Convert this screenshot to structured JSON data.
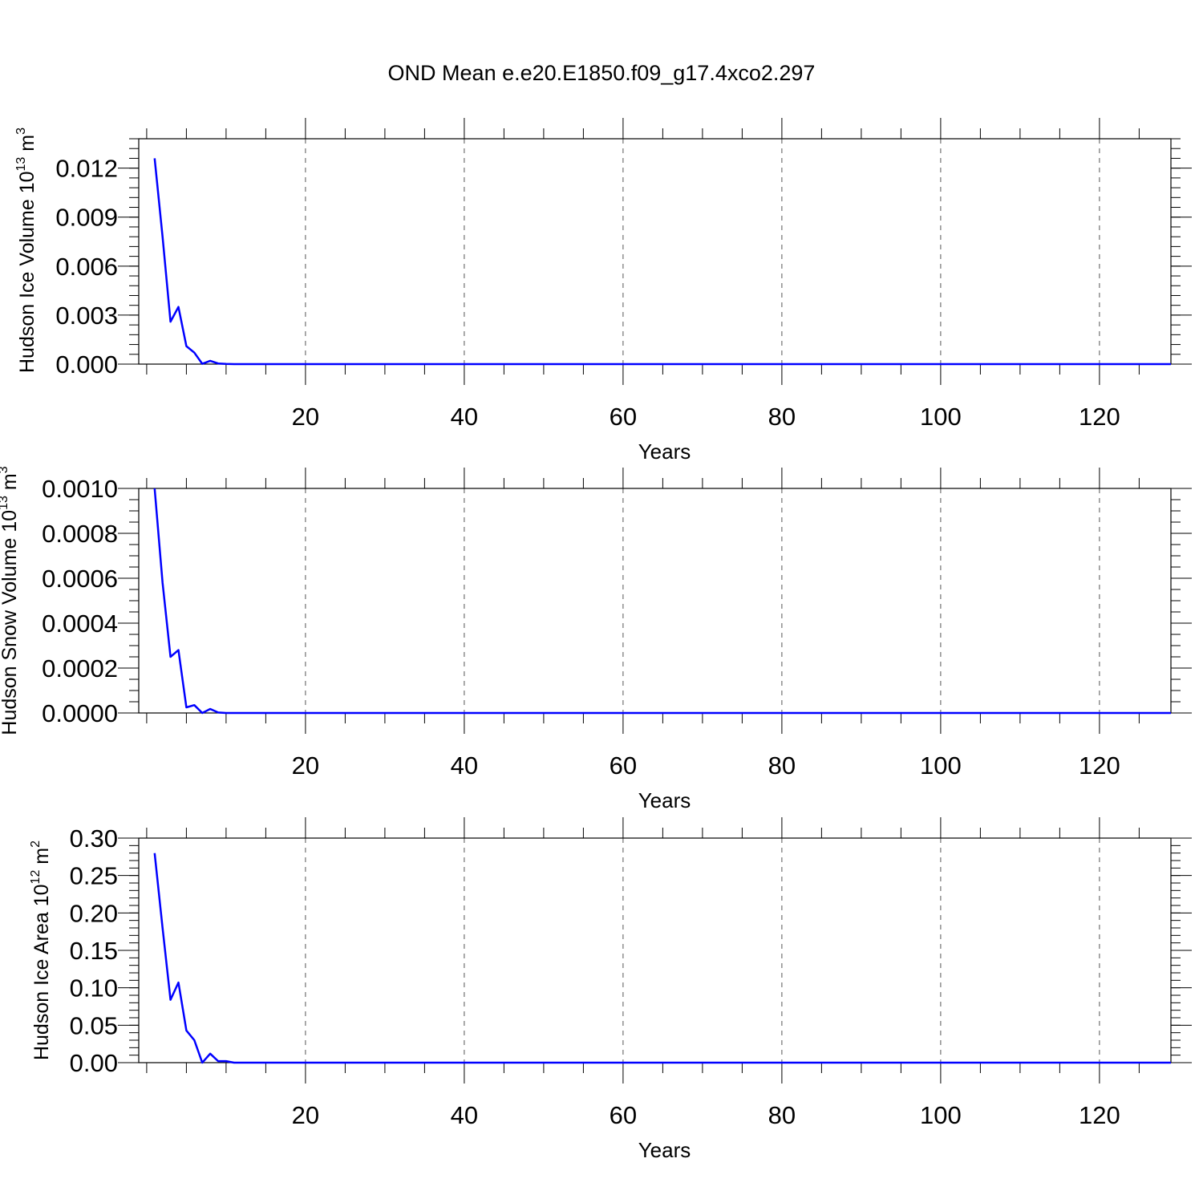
{
  "title": "OND Mean e.e20.E1850.f09_g17.4xco2.297",
  "colors": {
    "line": "#0000ff",
    "frame": "#000000",
    "grid": "#555555"
  },
  "chart_data": [
    {
      "type": "line",
      "ylabel": "Hudson Ice Volume 10¹³ m³",
      "ylabel_parts": [
        "Hudson Ice Volume 10",
        "13",
        " m",
        "3"
      ],
      "xlabel": "Years",
      "xlim": [
        -1,
        129
      ],
      "ylim": [
        0,
        0.0138
      ],
      "xticks": [
        20,
        40,
        60,
        80,
        100,
        120
      ],
      "xtick_labels": [
        "20",
        "40",
        "60",
        "80",
        "100",
        "120"
      ],
      "yticks": [
        0,
        0.003,
        0.006,
        0.009,
        0.012
      ],
      "ytick_labels": [
        "0.000",
        "0.003",
        "0.006",
        "0.009",
        "0.012"
      ],
      "x_minor_step": 5,
      "y_minor_step": 0.0006,
      "grid": "vertical dashed at major x ticks",
      "series": [
        {
          "x": [
            1,
            2,
            3,
            4,
            5,
            6,
            7,
            8,
            9,
            10,
            11,
            12,
            129
          ],
          "y": [
            0.0126,
            0.0078,
            0.0026,
            0.0035,
            0.0011,
            0.0007,
            2e-05,
            0.0002,
            4e-05,
            1e-05,
            0.0,
            0.0,
            0.0
          ]
        }
      ]
    },
    {
      "type": "line",
      "ylabel": "Hudson Snow Volume 10¹³ m³",
      "ylabel_parts": [
        "Hudson Snow Volume 10",
        "13",
        " m",
        "3"
      ],
      "xlabel": "Years",
      "xlim": [
        -1,
        129
      ],
      "ylim": [
        0,
        0.001
      ],
      "xticks": [
        20,
        40,
        60,
        80,
        100,
        120
      ],
      "xtick_labels": [
        "20",
        "40",
        "60",
        "80",
        "100",
        "120"
      ],
      "yticks": [
        0,
        0.0002,
        0.0004,
        0.0006,
        0.0008,
        0.001
      ],
      "ytick_labels": [
        "0.0000",
        "0.0002",
        "0.0004",
        "0.0006",
        "0.0008",
        "0.0010"
      ],
      "x_minor_step": 5,
      "y_minor_step": 5e-05,
      "grid": "vertical dashed at major x ticks",
      "series": [
        {
          "x": [
            1,
            2,
            3,
            4,
            5,
            6,
            7,
            8,
            9,
            10,
            11,
            12,
            129
          ],
          "y": [
            0.001,
            0.00058,
            0.00025,
            0.00028,
            2.5e-05,
            3.5e-05,
            0.0,
            1.8e-05,
            2e-06,
            0.0,
            0.0,
            0.0,
            0.0
          ]
        }
      ]
    },
    {
      "type": "line",
      "ylabel": "Hudson Ice Area 10¹² m²",
      "ylabel_parts": [
        "Hudson Ice Area 10",
        "12",
        " m",
        "2"
      ],
      "xlabel": "Years",
      "xlim": [
        -1,
        129
      ],
      "ylim": [
        0,
        0.3
      ],
      "xticks": [
        20,
        40,
        60,
        80,
        100,
        120
      ],
      "xtick_labels": [
        "20",
        "40",
        "60",
        "80",
        "100",
        "120"
      ],
      "yticks": [
        0,
        0.05,
        0.1,
        0.15,
        0.2,
        0.25,
        0.3
      ],
      "ytick_labels": [
        "0.00",
        "0.05",
        "0.10",
        "0.15",
        "0.20",
        "0.25",
        "0.30"
      ],
      "x_minor_step": 5,
      "y_minor_step": 0.01,
      "grid": "vertical dashed at major x ticks",
      "series": [
        {
          "x": [
            1,
            2,
            3,
            4,
            5,
            6,
            7,
            8,
            9,
            10,
            11,
            12,
            129
          ],
          "y": [
            0.28,
            0.18,
            0.084,
            0.107,
            0.043,
            0.03,
            0.0,
            0.012,
            0.002,
            0.002,
            0.0,
            0.0,
            0.0
          ]
        }
      ]
    }
  ]
}
